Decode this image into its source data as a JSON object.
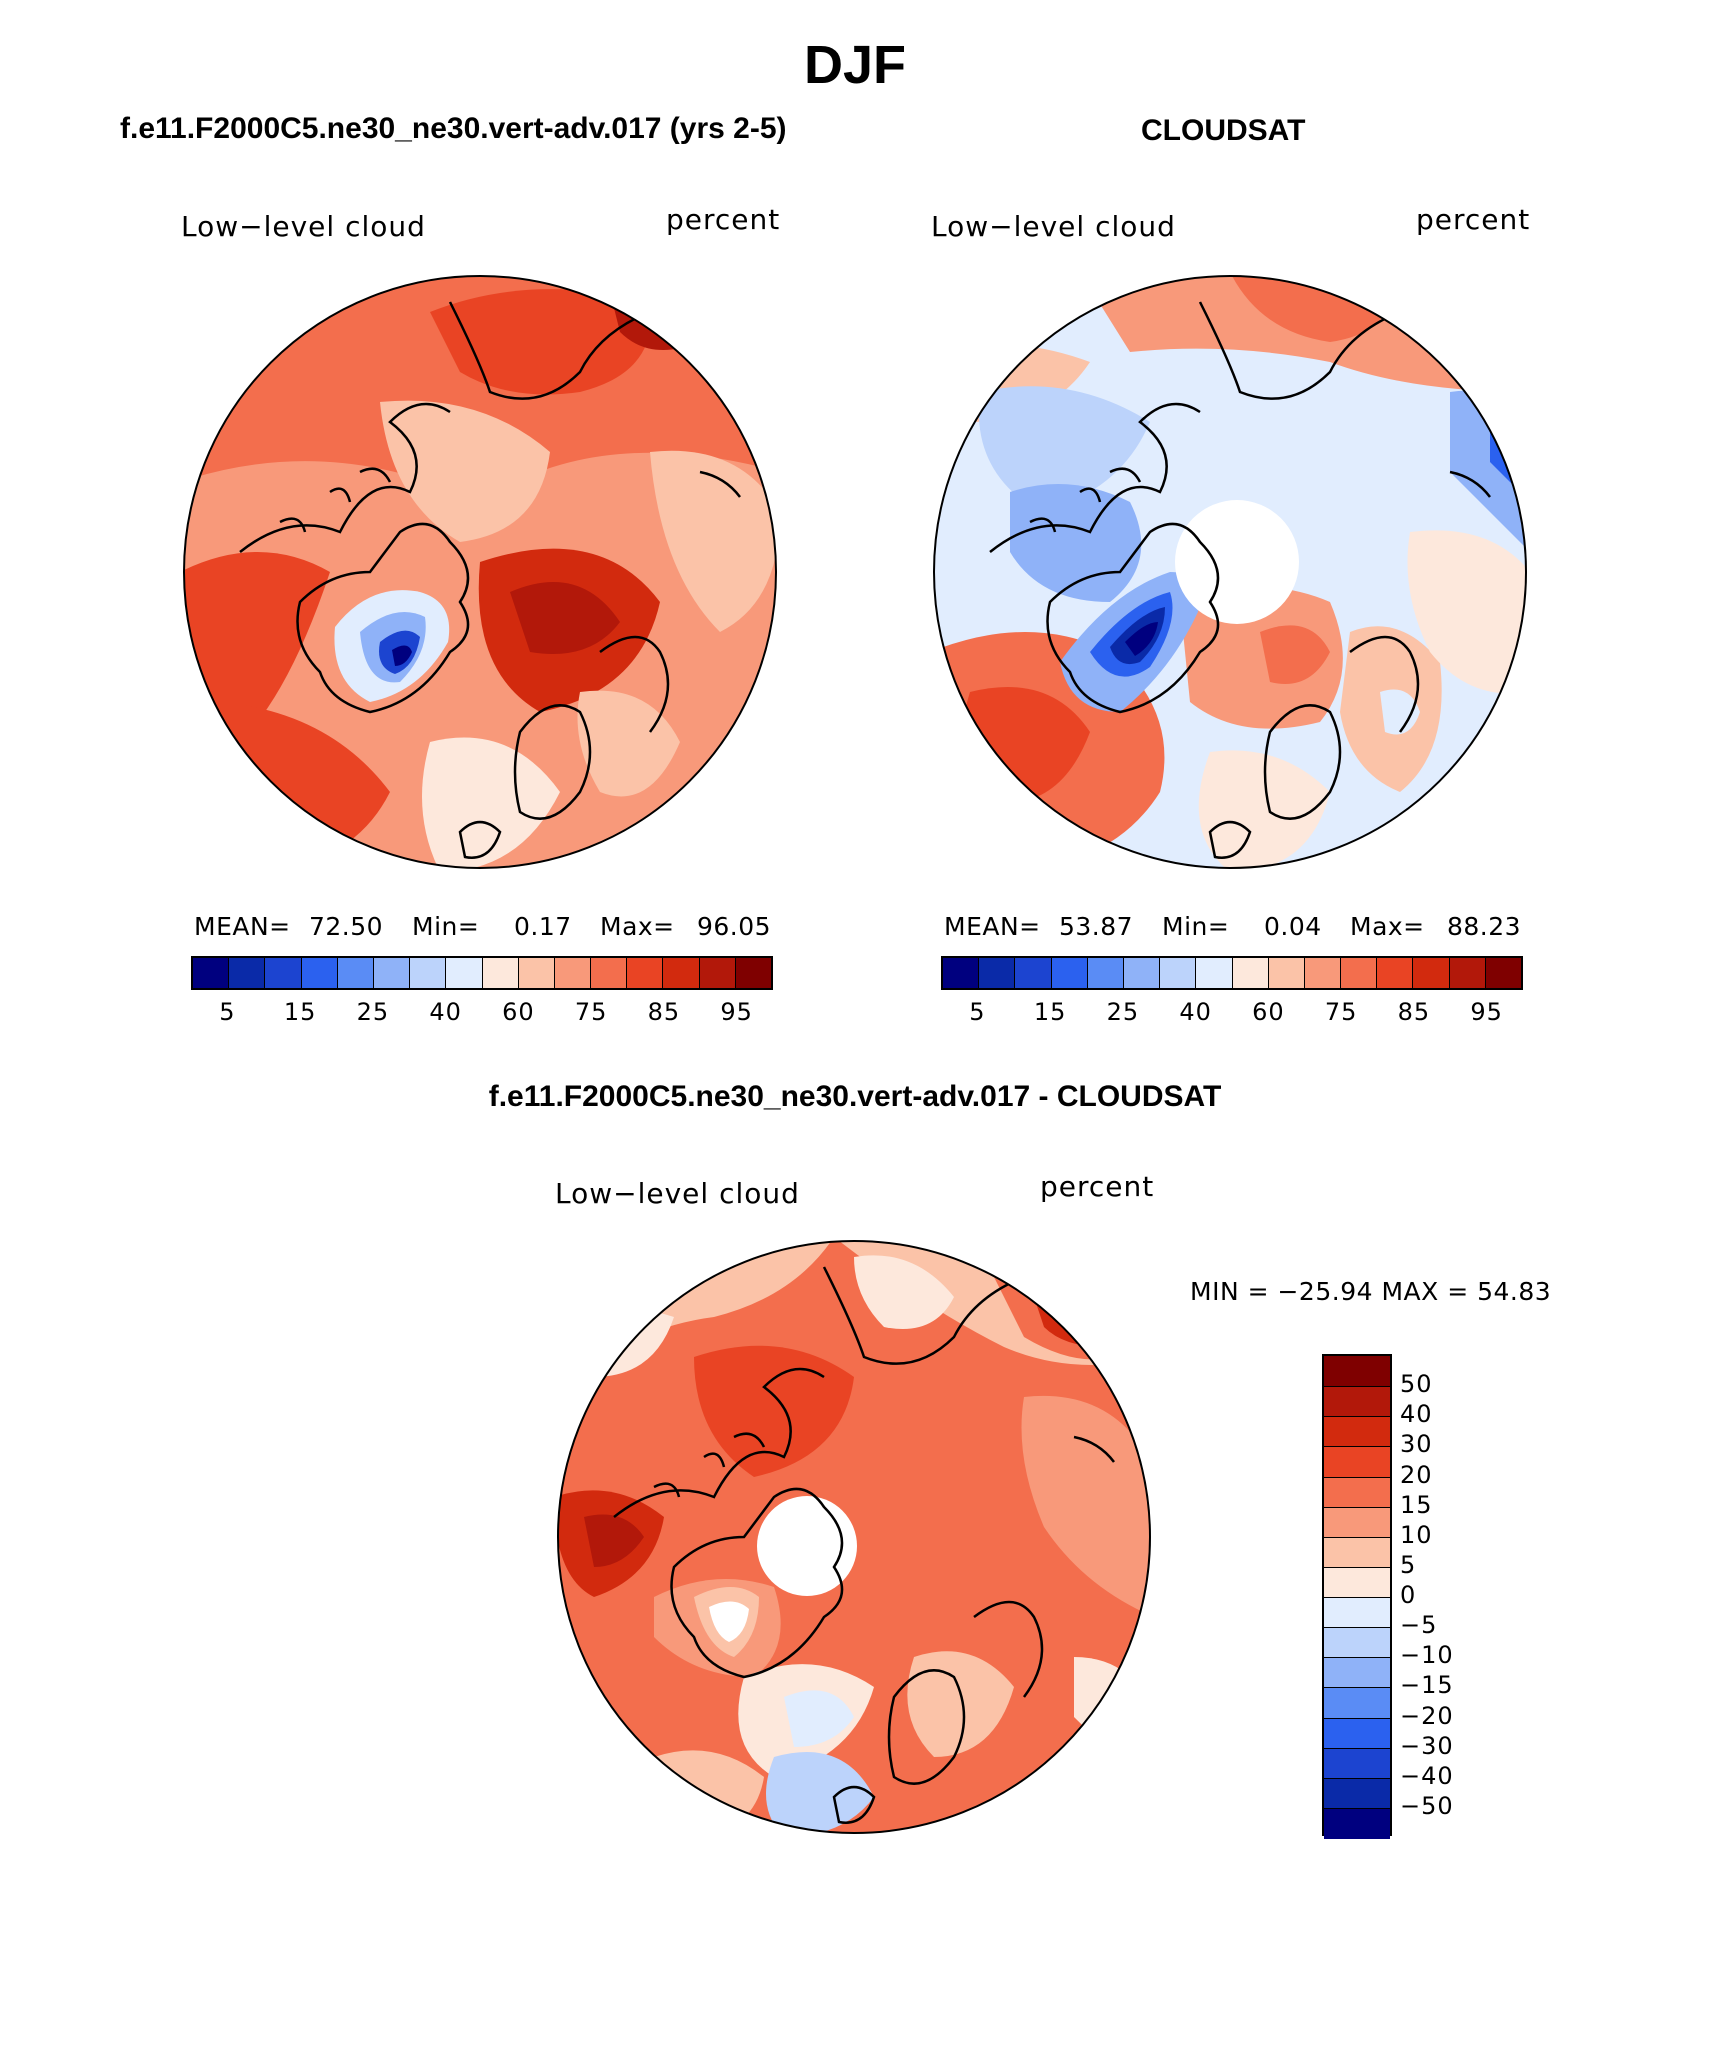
{
  "page_title": "DJF",
  "panels": [
    {
      "header": "f.e11.F2000C5.ne30_ne30.vert-adv.017 (yrs 2-5)",
      "left_label": "Low−level cloud",
      "right_label": "percent",
      "mean_label": "MEAN=",
      "mean_value": "72.50",
      "min_label": "Min=",
      "min_value": "0.17",
      "max_label": "Max=",
      "max_value": "96.05"
    },
    {
      "header": "CLOUDSAT",
      "left_label": "Low−level cloud",
      "right_label": "percent",
      "mean_label": "MEAN=",
      "mean_value": "53.87",
      "min_label": "Min=",
      "min_value": "0.04",
      "max_label": "Max=",
      "max_value": "88.23"
    }
  ],
  "abs_colorbar": {
    "colors": [
      "#00007f",
      "#0a2aa8",
      "#1c44d0",
      "#2b61ef",
      "#5a8cf5",
      "#8fb2f8",
      "#bcd3fb",
      "#e1edfe",
      "#fde8dc",
      "#fbc3a8",
      "#f8997a",
      "#f36e4d",
      "#e94424",
      "#d22a0e",
      "#b2180a",
      "#7f0000"
    ],
    "tick_labels": [
      "5",
      "15",
      "25",
      "40",
      "60",
      "75",
      "85",
      "95"
    ]
  },
  "diff_panel": {
    "header": "f.e11.F2000C5.ne30_ne30.vert-adv.017 - CLOUDSAT",
    "left_label": "Low−level cloud",
    "right_label": "percent",
    "minmax_text": "MIN = −25.94 MAX =   54.83"
  },
  "diff_colorbar": {
    "colors_top_to_bottom": [
      "#7f0000",
      "#b2180a",
      "#d22a0e",
      "#e94424",
      "#f36e4d",
      "#f8997a",
      "#fbc3a8",
      "#fde8dc",
      "#e1edfe",
      "#bcd3fb",
      "#8fb2f8",
      "#5a8cf5",
      "#2b61ef",
      "#1c44d0",
      "#0a2aa8",
      "#00007f"
    ],
    "tick_labels": [
      "50",
      "40",
      "30",
      "20",
      "15",
      "10",
      "5",
      "0",
      "−5",
      "−10",
      "−15",
      "−20",
      "−30",
      "−40",
      "−50"
    ]
  }
}
